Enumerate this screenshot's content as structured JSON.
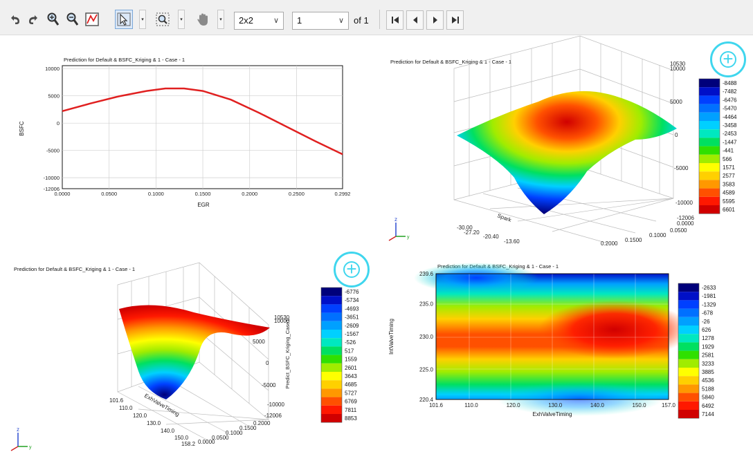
{
  "toolbar": {
    "icons": [
      "undo-icon",
      "redo-icon",
      "zoom-in-icon",
      "zoom-out-icon",
      "reset-view-icon",
      "select-pointer-icon",
      "zoom-box-icon",
      "pan-hand-icon"
    ],
    "layout_value": "2x2",
    "page_value": "1",
    "page_of_label": "of 1",
    "nav_icons": [
      "first-page-icon",
      "prev-page-icon",
      "next-page-icon",
      "last-page-icon"
    ]
  },
  "plots": {
    "line": {
      "title": "Prediction for Default & BSFC_Kriging & 1 - Case - 1",
      "xlabel": "EGR",
      "ylabel": "BSFC"
    },
    "surface_top": {
      "title": "Prediction for Default & BSFC_Kriging & 1 - Case - 1",
      "axis_label_1": "Spark",
      "z_ticks": [
        "10530",
        "10000",
        "5000",
        "0",
        "-5000",
        "-10000",
        "-12006"
      ],
      "x_ticks": [
        "0.0000",
        "0.0500",
        "0.1000",
        "0.1500",
        "0.2000"
      ],
      "y_ticks": [
        "-30.00",
        "-27.20",
        "-20.40",
        "-13.60"
      ],
      "colorbar": [
        "-8488",
        "-7482",
        "-6476",
        "-5470",
        "-4464",
        "-3458",
        "-2453",
        "-1447",
        "-441",
        "566",
        "1571",
        "2577",
        "3583",
        "4589",
        "5595",
        "6601"
      ]
    },
    "surface_bottom": {
      "title": "Prediction for Default & BSFC_Kriging & 1 - Case - 1",
      "axis_label_1": "ExhValveTiming",
      "z_axis_title": "Predict_BSFC_Kriging_Case1",
      "z_ticks": [
        "10530",
        "10000",
        "5000",
        "0",
        "-5000",
        "-10000",
        "-12006"
      ],
      "x_ticks": [
        "101.6",
        "110.0",
        "120.0",
        "130.0",
        "140.0",
        "150.0",
        "158.2"
      ],
      "y_ticks": [
        "0.0000",
        "0.0500",
        "0.1000",
        "0.1500",
        "0.2000"
      ],
      "colorbar": [
        "-6776",
        "-5734",
        "-4693",
        "-3651",
        "-2609",
        "-1567",
        "-526",
        "517",
        "1559",
        "2601",
        "3643",
        "4685",
        "5727",
        "6769",
        "7811",
        "8853"
      ]
    },
    "contour": {
      "title": "Prediction for Default & BSFC_Kriging & 1 - Case - 1",
      "xlabel": "ExhValveTiming",
      "ylabel": "IntValveTiming",
      "colorbar": [
        "-2633",
        "-1981",
        "-1329",
        "-678",
        "-26",
        "626",
        "1278",
        "1929",
        "2581",
        "3233",
        "3885",
        "4536",
        "5188",
        "5840",
        "6492",
        "7144"
      ]
    }
  },
  "chart_data": [
    {
      "type": "line",
      "title": "Prediction for Default & BSFC_Kriging & 1 - Case - 1",
      "xlabel": "EGR",
      "ylabel": "BSFC",
      "xlim": [
        0,
        0.2992
      ],
      "ylim": [
        -12006,
        10530
      ],
      "x_ticks": [
        "0.0000",
        "0.0500",
        "0.1000",
        "0.1500",
        "0.2000",
        "0.2500",
        "0.2992"
      ],
      "y_ticks": [
        "10000",
        "5000",
        "0",
        "-5000",
        "-10000",
        "-12006"
      ],
      "grid": true,
      "series": [
        {
          "color": "#e02020",
          "x": [
            0,
            0.03,
            0.06,
            0.09,
            0.11,
            0.13,
            0.15,
            0.18,
            0.21,
            0.24,
            0.27,
            0.2992
          ],
          "y": [
            2200,
            3600,
            4900,
            5900,
            6350,
            6350,
            5900,
            4300,
            1900,
            -700,
            -3300,
            -5700
          ]
        }
      ]
    },
    {
      "type": "heatmap",
      "title": "Prediction for Default & BSFC_Kriging & 1 - Case - 1",
      "xlabel": "ExhValveTiming",
      "ylabel": "IntValveTiming",
      "xlim": [
        101.6,
        157.0
      ],
      "ylim": [
        220.4,
        239.6
      ],
      "x_ticks": [
        "101.6",
        "110.0",
        "120.0",
        "130.0",
        "140.0",
        "150.0",
        "157.0"
      ],
      "y_ticks": [
        "239.6",
        "235.0",
        "230.0",
        "225.0",
        "220.4"
      ],
      "colorbar_values": [
        "-2633",
        "-1981",
        "-1329",
        "-678",
        "-26",
        "626",
        "1278",
        "1929",
        "2581",
        "3233",
        "3885",
        "4536",
        "5188",
        "5840",
        "6492",
        "7144"
      ]
    }
  ],
  "colors": {
    "scale": [
      "#00007a",
      "#0010c8",
      "#0040ff",
      "#0070ff",
      "#00a0ff",
      "#00d0ff",
      "#00e8c0",
      "#00e060",
      "#30e000",
      "#a0ec00",
      "#ffff00",
      "#ffd000",
      "#ff9800",
      "#ff5000",
      "#ff1800",
      "#d00000"
    ],
    "line_red": "#e02020",
    "zoom_cyan": "#3fd6ee"
  }
}
